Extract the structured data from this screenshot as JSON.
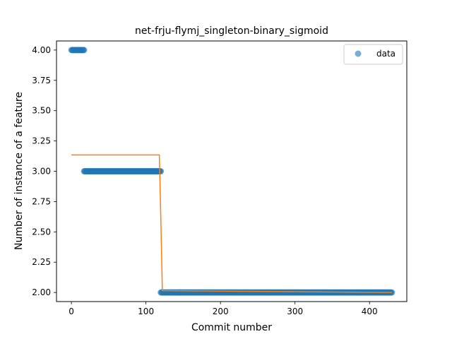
{
  "chart_data": {
    "type": "scatter",
    "title": "net-frju-flymj_singleton-binary_sigmoid",
    "xlabel": "Commit number",
    "ylabel": "Number of instance of a feature",
    "xlim": [
      -20,
      450
    ],
    "ylim": [
      1.925,
      4.075
    ],
    "xticks": [
      0,
      100,
      200,
      300,
      400
    ],
    "yticks": [
      2.0,
      2.25,
      2.5,
      2.75,
      3.0,
      3.25,
      3.5,
      3.75,
      4.0
    ],
    "grid": false,
    "legend": {
      "position": "top-right",
      "entries": [
        {
          "label": "data",
          "marker": "circle"
        }
      ]
    },
    "series": [
      {
        "name": "data",
        "kind": "scatter",
        "segments": [
          {
            "x_start": 0,
            "x_end": 17,
            "y": 4.0
          },
          {
            "x_start": 17,
            "x_end": 120,
            "y": 3.0
          },
          {
            "x_start": 120,
            "x_end": 430,
            "y": 2.0
          }
        ]
      },
      {
        "kind": "line",
        "x": [
          0,
          118,
          120,
          122,
          430
        ],
        "y": [
          3.135,
          3.135,
          2.6,
          2.015,
          2.0
        ]
      }
    ],
    "colors": {
      "data": "#1f77b4",
      "fit": "#ff7f0e"
    }
  }
}
